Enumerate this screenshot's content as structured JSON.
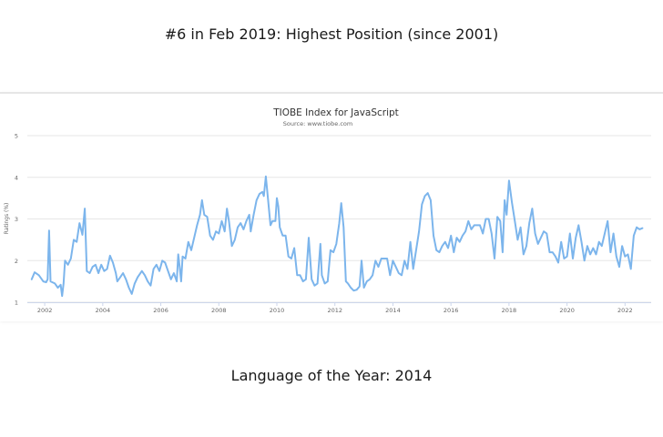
{
  "headline_top": "#6 in Feb 2019: Highest Position (since 2001)",
  "headline_bottom": "Language of the Year: 2014",
  "colors": {
    "line": "#7cb5ec",
    "grid": "#e6e6e6",
    "text": "#666666",
    "title": "#333333"
  },
  "chart_data": {
    "type": "line",
    "title": "TIOBE Index for JavaScript",
    "subtitle": "Source: www.tiobe.com",
    "xlabel": "",
    "ylabel": "Ratings (%)",
    "xlim": [
      2001.4,
      2022.9
    ],
    "ylim": [
      1,
      5
    ],
    "yticks": [
      1,
      2,
      3,
      4,
      5
    ],
    "xticks": [
      2002,
      2004,
      2006,
      2008,
      2010,
      2012,
      2014,
      2016,
      2018,
      2020,
      2022
    ],
    "grid": true,
    "legend": "none",
    "series": [
      {
        "name": "JavaScript",
        "points": [
          [
            2001.55,
            1.55
          ],
          [
            2001.65,
            1.72
          ],
          [
            2001.8,
            1.65
          ],
          [
            2001.95,
            1.5
          ],
          [
            2002.05,
            1.48
          ],
          [
            2002.1,
            1.55
          ],
          [
            2002.15,
            2.72
          ],
          [
            2002.2,
            1.5
          ],
          [
            2002.35,
            1.45
          ],
          [
            2002.45,
            1.35
          ],
          [
            2002.55,
            1.42
          ],
          [
            2002.6,
            1.15
          ],
          [
            2002.65,
            1.45
          ],
          [
            2002.7,
            2.0
          ],
          [
            2002.8,
            1.9
          ],
          [
            2002.9,
            2.05
          ],
          [
            2003.0,
            2.5
          ],
          [
            2003.1,
            2.45
          ],
          [
            2003.2,
            2.9
          ],
          [
            2003.3,
            2.62
          ],
          [
            2003.38,
            3.25
          ],
          [
            2003.45,
            1.75
          ],
          [
            2003.55,
            1.7
          ],
          [
            2003.65,
            1.85
          ],
          [
            2003.75,
            1.9
          ],
          [
            2003.85,
            1.7
          ],
          [
            2003.95,
            1.9
          ],
          [
            2004.05,
            1.75
          ],
          [
            2004.15,
            1.8
          ],
          [
            2004.25,
            2.12
          ],
          [
            2004.35,
            1.95
          ],
          [
            2004.45,
            1.7
          ],
          [
            2004.5,
            1.5
          ],
          [
            2004.6,
            1.6
          ],
          [
            2004.7,
            1.7
          ],
          [
            2004.8,
            1.55
          ],
          [
            2004.9,
            1.35
          ],
          [
            2005.0,
            1.2
          ],
          [
            2005.1,
            1.45
          ],
          [
            2005.2,
            1.6
          ],
          [
            2005.35,
            1.75
          ],
          [
            2005.45,
            1.65
          ],
          [
            2005.55,
            1.5
          ],
          [
            2005.65,
            1.4
          ],
          [
            2005.75,
            1.8
          ],
          [
            2005.85,
            1.9
          ],
          [
            2005.95,
            1.75
          ],
          [
            2006.05,
            2.0
          ],
          [
            2006.15,
            1.95
          ],
          [
            2006.25,
            1.75
          ],
          [
            2006.35,
            1.55
          ],
          [
            2006.45,
            1.7
          ],
          [
            2006.55,
            1.5
          ],
          [
            2006.6,
            2.15
          ],
          [
            2006.65,
            1.85
          ],
          [
            2006.7,
            1.5
          ],
          [
            2006.75,
            2.1
          ],
          [
            2006.85,
            2.05
          ],
          [
            2006.95,
            2.45
          ],
          [
            2007.05,
            2.25
          ],
          [
            2007.15,
            2.55
          ],
          [
            2007.25,
            2.85
          ],
          [
            2007.35,
            3.1
          ],
          [
            2007.42,
            3.45
          ],
          [
            2007.5,
            3.1
          ],
          [
            2007.6,
            3.05
          ],
          [
            2007.7,
            2.6
          ],
          [
            2007.8,
            2.5
          ],
          [
            2007.9,
            2.7
          ],
          [
            2008.0,
            2.65
          ],
          [
            2008.1,
            2.95
          ],
          [
            2008.2,
            2.7
          ],
          [
            2008.28,
            3.25
          ],
          [
            2008.35,
            2.95
          ],
          [
            2008.45,
            2.35
          ],
          [
            2008.55,
            2.5
          ],
          [
            2008.65,
            2.8
          ],
          [
            2008.75,
            2.9
          ],
          [
            2008.85,
            2.75
          ],
          [
            2008.95,
            2.95
          ],
          [
            2009.05,
            3.1
          ],
          [
            2009.1,
            2.7
          ],
          [
            2009.2,
            3.1
          ],
          [
            2009.3,
            3.45
          ],
          [
            2009.4,
            3.6
          ],
          [
            2009.5,
            3.65
          ],
          [
            2009.55,
            3.55
          ],
          [
            2009.62,
            4.02
          ],
          [
            2009.7,
            3.45
          ],
          [
            2009.78,
            2.85
          ],
          [
            2009.85,
            2.95
          ],
          [
            2009.95,
            2.95
          ],
          [
            2010.0,
            3.5
          ],
          [
            2010.05,
            3.3
          ],
          [
            2010.1,
            2.8
          ],
          [
            2010.2,
            2.6
          ],
          [
            2010.3,
            2.6
          ],
          [
            2010.4,
            2.1
          ],
          [
            2010.5,
            2.05
          ],
          [
            2010.6,
            2.3
          ],
          [
            2010.7,
            1.65
          ],
          [
            2010.8,
            1.65
          ],
          [
            2010.9,
            1.5
          ],
          [
            2011.0,
            1.55
          ],
          [
            2011.1,
            2.55
          ],
          [
            2011.2,
            1.55
          ],
          [
            2011.3,
            1.4
          ],
          [
            2011.4,
            1.45
          ],
          [
            2011.5,
            2.4
          ],
          [
            2011.55,
            1.65
          ],
          [
            2011.65,
            1.45
          ],
          [
            2011.75,
            1.5
          ],
          [
            2011.85,
            2.25
          ],
          [
            2011.95,
            2.2
          ],
          [
            2012.05,
            2.4
          ],
          [
            2012.15,
            2.9
          ],
          [
            2012.22,
            3.38
          ],
          [
            2012.3,
            2.8
          ],
          [
            2012.38,
            1.5
          ],
          [
            2012.45,
            1.45
          ],
          [
            2012.55,
            1.35
          ],
          [
            2012.65,
            1.28
          ],
          [
            2012.75,
            1.3
          ],
          [
            2012.85,
            1.38
          ],
          [
            2012.92,
            2.0
          ],
          [
            2013.0,
            1.35
          ],
          [
            2013.1,
            1.5
          ],
          [
            2013.2,
            1.55
          ],
          [
            2013.3,
            1.65
          ],
          [
            2013.4,
            2.0
          ],
          [
            2013.5,
            1.85
          ],
          [
            2013.6,
            2.05
          ],
          [
            2013.7,
            2.05
          ],
          [
            2013.8,
            2.05
          ],
          [
            2013.9,
            1.65
          ],
          [
            2014.0,
            2.0
          ],
          [
            2014.1,
            1.85
          ],
          [
            2014.2,
            1.7
          ],
          [
            2014.3,
            1.65
          ],
          [
            2014.4,
            2.0
          ],
          [
            2014.5,
            1.8
          ],
          [
            2014.6,
            2.45
          ],
          [
            2014.7,
            1.8
          ],
          [
            2014.8,
            2.25
          ],
          [
            2014.9,
            2.7
          ],
          [
            2015.0,
            3.35
          ],
          [
            2015.1,
            3.55
          ],
          [
            2015.2,
            3.62
          ],
          [
            2015.3,
            3.45
          ],
          [
            2015.4,
            2.6
          ],
          [
            2015.5,
            2.25
          ],
          [
            2015.6,
            2.2
          ],
          [
            2015.7,
            2.35
          ],
          [
            2015.8,
            2.45
          ],
          [
            2015.9,
            2.3
          ],
          [
            2016.0,
            2.6
          ],
          [
            2016.1,
            2.2
          ],
          [
            2016.2,
            2.55
          ],
          [
            2016.3,
            2.45
          ],
          [
            2016.4,
            2.6
          ],
          [
            2016.5,
            2.7
          ],
          [
            2016.6,
            2.95
          ],
          [
            2016.7,
            2.75
          ],
          [
            2016.8,
            2.85
          ],
          [
            2016.9,
            2.85
          ],
          [
            2017.0,
            2.85
          ],
          [
            2017.1,
            2.65
          ],
          [
            2017.2,
            3.0
          ],
          [
            2017.3,
            3.0
          ],
          [
            2017.4,
            2.65
          ],
          [
            2017.5,
            2.05
          ],
          [
            2017.6,
            3.05
          ],
          [
            2017.7,
            2.95
          ],
          [
            2017.78,
            2.2
          ],
          [
            2017.85,
            3.45
          ],
          [
            2017.92,
            3.1
          ],
          [
            2018.0,
            3.92
          ],
          [
            2018.1,
            3.4
          ],
          [
            2018.2,
            2.95
          ],
          [
            2018.3,
            2.5
          ],
          [
            2018.4,
            2.8
          ],
          [
            2018.5,
            2.15
          ],
          [
            2018.6,
            2.35
          ],
          [
            2018.7,
            2.9
          ],
          [
            2018.8,
            3.25
          ],
          [
            2018.9,
            2.65
          ],
          [
            2019.0,
            2.4
          ],
          [
            2019.1,
            2.55
          ],
          [
            2019.2,
            2.7
          ],
          [
            2019.3,
            2.65
          ],
          [
            2019.4,
            2.2
          ],
          [
            2019.5,
            2.2
          ],
          [
            2019.6,
            2.1
          ],
          [
            2019.7,
            1.95
          ],
          [
            2019.8,
            2.45
          ],
          [
            2019.9,
            2.05
          ],
          [
            2020.0,
            2.1
          ],
          [
            2020.1,
            2.65
          ],
          [
            2020.2,
            2.05
          ],
          [
            2020.3,
            2.55
          ],
          [
            2020.4,
            2.85
          ],
          [
            2020.5,
            2.45
          ],
          [
            2020.6,
            2.0
          ],
          [
            2020.7,
            2.35
          ],
          [
            2020.8,
            2.15
          ],
          [
            2020.9,
            2.3
          ],
          [
            2021.0,
            2.15
          ],
          [
            2021.1,
            2.45
          ],
          [
            2021.2,
            2.35
          ],
          [
            2021.3,
            2.65
          ],
          [
            2021.4,
            2.95
          ],
          [
            2021.5,
            2.2
          ],
          [
            2021.6,
            2.65
          ],
          [
            2021.7,
            2.1
          ],
          [
            2021.8,
            1.85
          ],
          [
            2021.9,
            2.35
          ],
          [
            2022.0,
            2.1
          ],
          [
            2022.1,
            2.15
          ],
          [
            2022.2,
            1.8
          ],
          [
            2022.3,
            2.6
          ],
          [
            2022.4,
            2.8
          ],
          [
            2022.5,
            2.75
          ],
          [
            2022.6,
            2.78
          ]
        ]
      }
    ]
  }
}
